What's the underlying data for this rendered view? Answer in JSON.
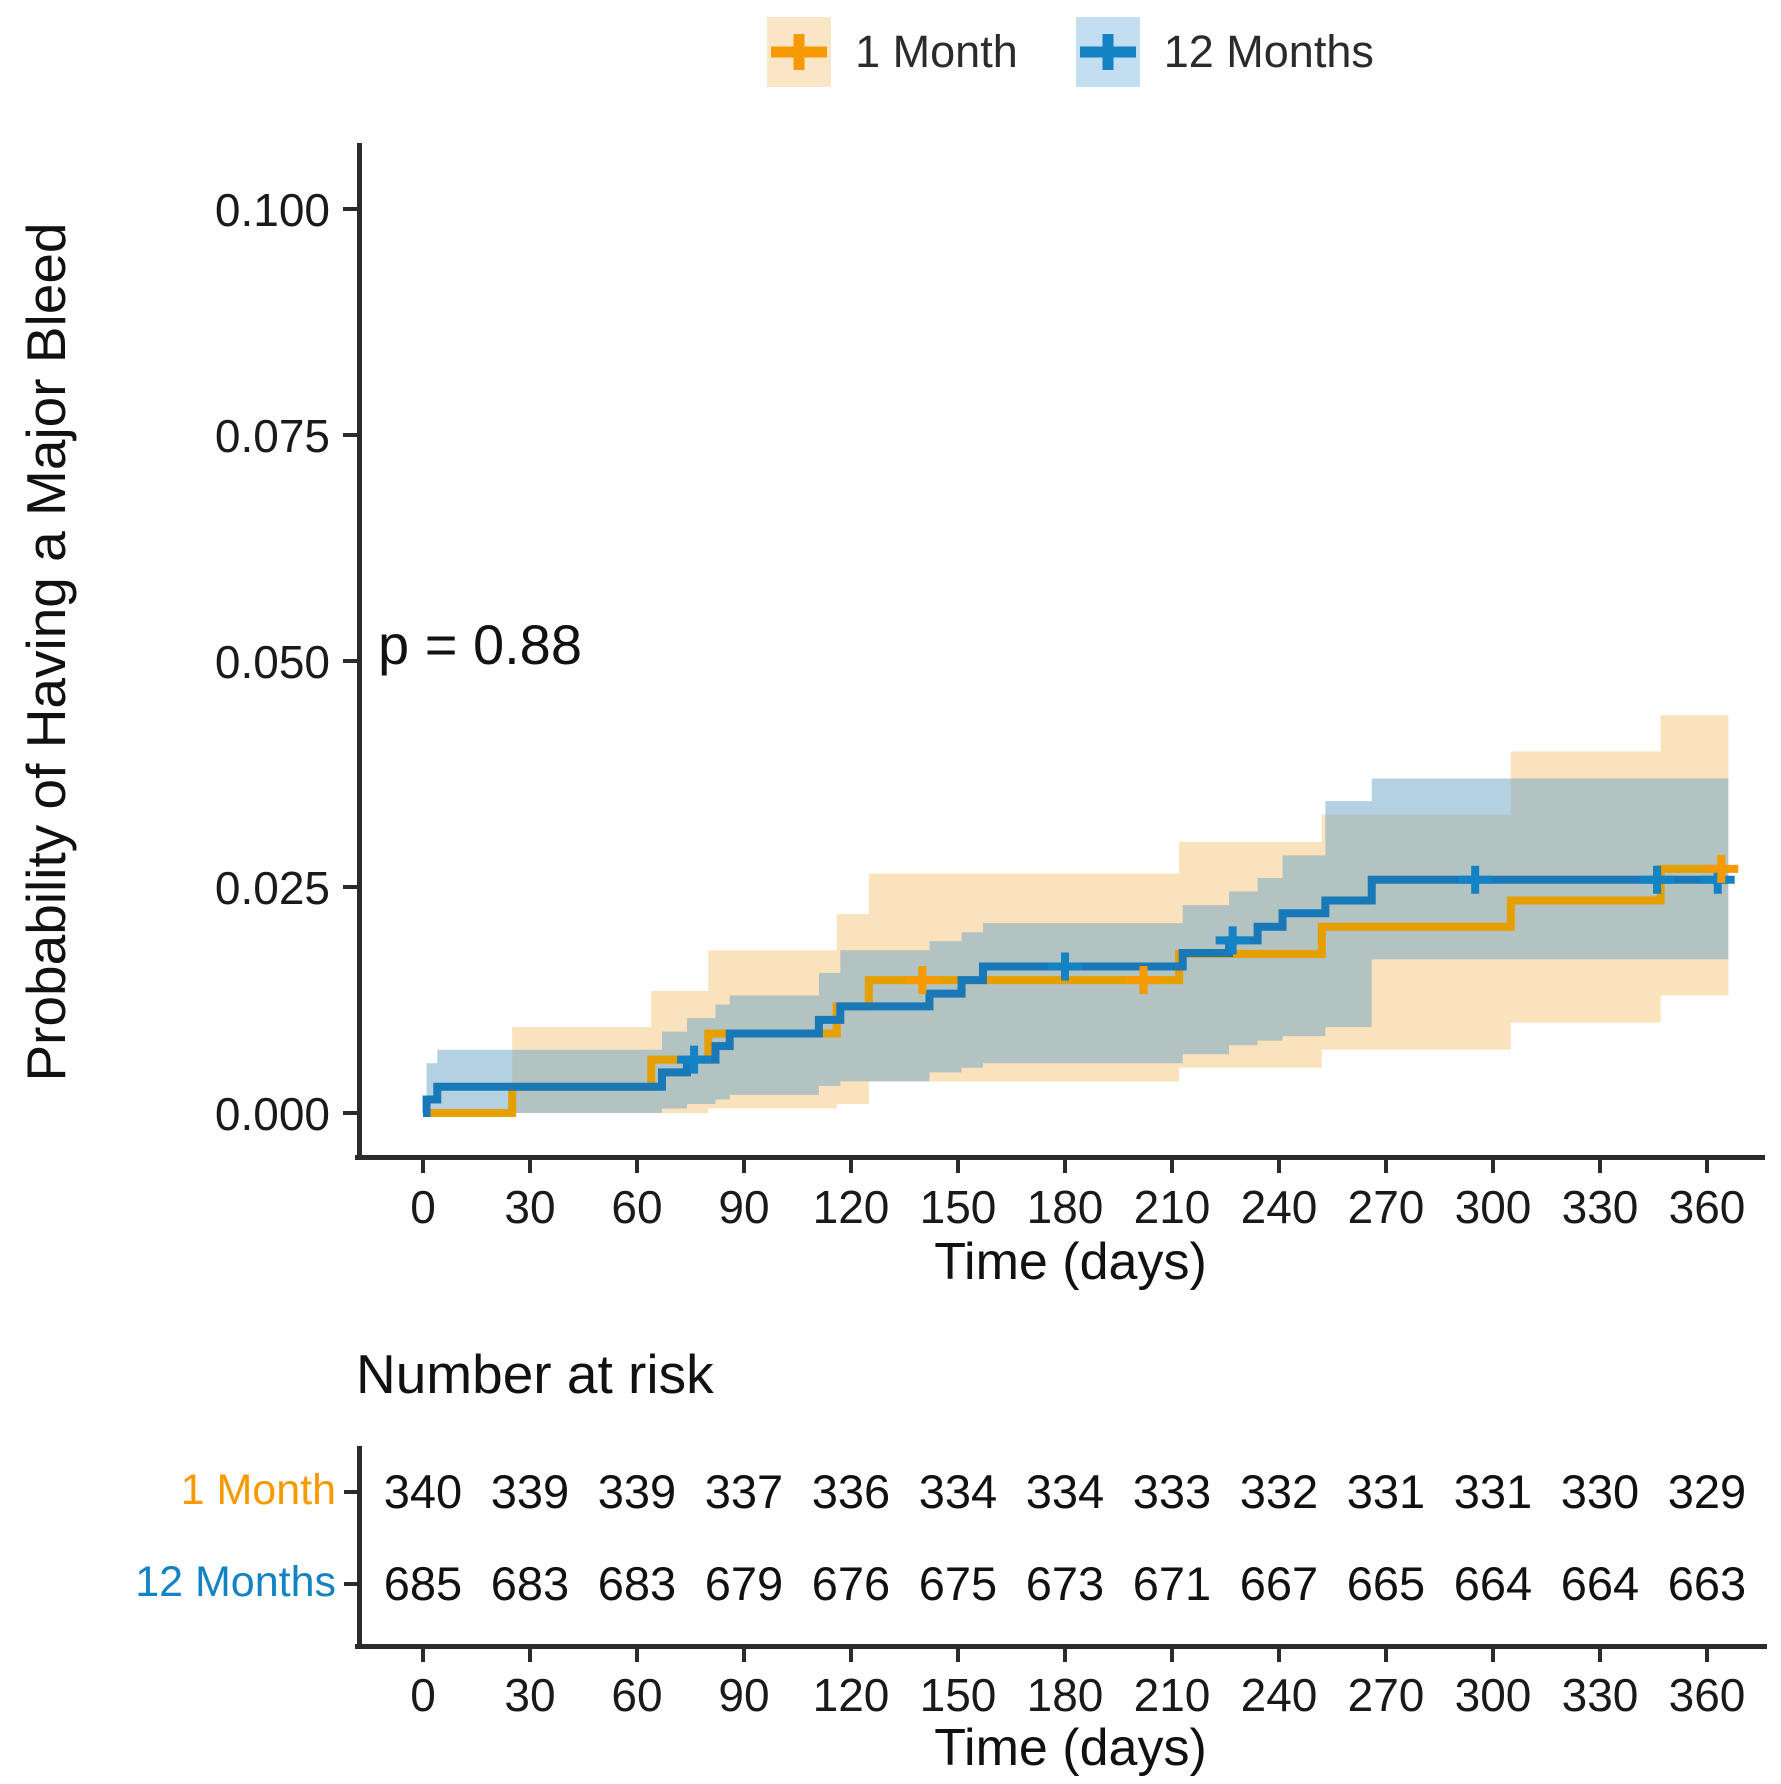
{
  "legend": {
    "items": [
      {
        "label": "1 Month",
        "marker_color": "#F79900",
        "swatch_color": "#FBE5C7"
      },
      {
        "label": "12 Months",
        "marker_color": "#1383C4",
        "swatch_color": "#C3DEF0"
      }
    ]
  },
  "colors": {
    "orange": "#F79900",
    "orange_line": "#E69F00",
    "orange_band": "#FAE2BD",
    "blue": "#1383C4",
    "blue_line": "#1878B8",
    "blue_band": "#6FA7C8",
    "axis": "#2b2b2b"
  },
  "plot": {
    "y_axis_label": "Probability of Having a Major Bleed",
    "x_axis_label": "Time (days)",
    "p_value_text": "p = 0.88",
    "y_ticks": [
      "0.100",
      "0.075",
      "0.050",
      "0.025",
      "0.000"
    ],
    "x_ticks": [
      0,
      30,
      60,
      90,
      120,
      150,
      180,
      210,
      240,
      270,
      300,
      330,
      360
    ]
  },
  "chart_data": {
    "type": "line",
    "subtype": "kaplan-meier-cumulative-incidence-steps",
    "title": "",
    "xlabel": "Time (days)",
    "ylabel": "Probability of Having a Major Bleed",
    "annotation": "p = 0.88",
    "legend_position": "top",
    "grid": false,
    "xlim": [
      0,
      368
    ],
    "ylim": [
      0,
      0.103
    ],
    "end_day": 366,
    "series": [
      {
        "name": "1 Month",
        "steps": [
          [
            0,
            0
          ],
          [
            25,
            0.0029
          ],
          [
            64,
            0.0059
          ],
          [
            80,
            0.0088
          ],
          [
            116,
            0.0118
          ],
          [
            125,
            0.0147
          ],
          [
            212,
            0.0176
          ],
          [
            252,
            0.0206
          ],
          [
            305,
            0.0235
          ],
          [
            347,
            0.027
          ]
        ],
        "censors": [
          [
            140,
            0.0147
          ],
          [
            202,
            0.0147
          ],
          [
            364,
            0.027
          ]
        ],
        "band": [
          [
            25,
            0.0,
            0.0095
          ],
          [
            64,
            0.0,
            0.0135
          ],
          [
            80,
            0.0005,
            0.018
          ],
          [
            116,
            0.001,
            0.022
          ],
          [
            125,
            0.0035,
            0.0265
          ],
          [
            212,
            0.005,
            0.03
          ],
          [
            252,
            0.007,
            0.033
          ],
          [
            305,
            0.01,
            0.04
          ],
          [
            347,
            0.013,
            0.044
          ]
        ]
      },
      {
        "name": "12 Months",
        "steps": [
          [
            0,
            0
          ],
          [
            1,
            0.0015
          ],
          [
            4,
            0.0029
          ],
          [
            67,
            0.0045
          ],
          [
            74,
            0.0059
          ],
          [
            82,
            0.0074
          ],
          [
            86,
            0.0088
          ],
          [
            111,
            0.0103
          ],
          [
            117,
            0.0118
          ],
          [
            142,
            0.0132
          ],
          [
            151,
            0.0147
          ],
          [
            157,
            0.0162
          ],
          [
            213,
            0.0177
          ],
          [
            226,
            0.0191
          ],
          [
            234,
            0.0206
          ],
          [
            241,
            0.0221
          ],
          [
            253,
            0.0235
          ],
          [
            266,
            0.0258
          ]
        ],
        "censors": [
          [
            76,
            0.0059
          ],
          [
            180,
            0.0162
          ],
          [
            227,
            0.0191
          ],
          [
            295,
            0.0258
          ],
          [
            346,
            0.0258
          ],
          [
            363,
            0.0258
          ]
        ],
        "band": [
          [
            1,
            0,
            0.0055
          ],
          [
            4,
            0,
            0.007
          ],
          [
            67,
            0.0005,
            0.009
          ],
          [
            74,
            0.001,
            0.0105
          ],
          [
            82,
            0.0015,
            0.012
          ],
          [
            86,
            0.002,
            0.013
          ],
          [
            111,
            0.003,
            0.0155
          ],
          [
            117,
            0.0035,
            0.018
          ],
          [
            142,
            0.0045,
            0.019
          ],
          [
            151,
            0.005,
            0.02
          ],
          [
            157,
            0.0055,
            0.021
          ],
          [
            213,
            0.0065,
            0.023
          ],
          [
            226,
            0.0075,
            0.0245
          ],
          [
            234,
            0.008,
            0.026
          ],
          [
            241,
            0.0085,
            0.0285
          ],
          [
            253,
            0.0095,
            0.0345
          ],
          [
            266,
            0.017,
            0.037
          ]
        ]
      }
    ]
  },
  "risk_table": {
    "title": "Number at risk",
    "x_axis_label": "Time (days)",
    "x_ticks": [
      0,
      30,
      60,
      90,
      120,
      150,
      180,
      210,
      240,
      270,
      300,
      330,
      360
    ],
    "rows": [
      {
        "label": "1 Month",
        "values": [
          340,
          339,
          339,
          337,
          336,
          334,
          334,
          333,
          332,
          331,
          331,
          330,
          329
        ]
      },
      {
        "label": "12 Months",
        "values": [
          685,
          683,
          683,
          679,
          676,
          675,
          673,
          671,
          667,
          665,
          664,
          664,
          663
        ]
      }
    ]
  }
}
